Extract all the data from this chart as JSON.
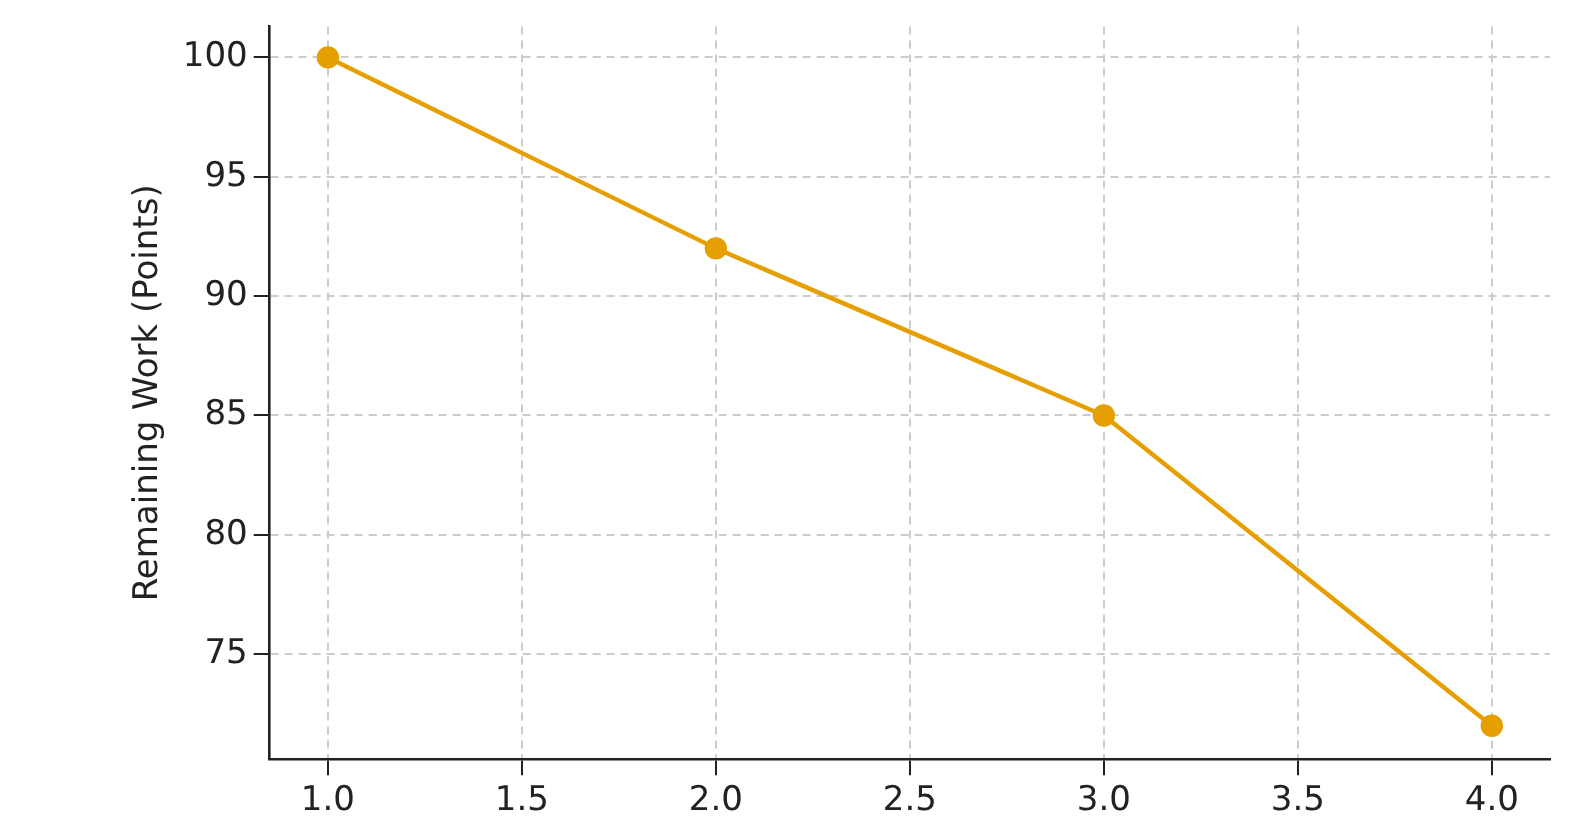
{
  "chart_data": {
    "type": "line",
    "ylabel": "Remaining Work (Points)",
    "x": [
      1,
      2,
      3,
      4
    ],
    "series": [
      {
        "color": "#e69f00",
        "values": [
          100,
          92,
          85,
          72
        ]
      }
    ],
    "xlim": [
      0.85,
      4.15
    ],
    "xticks": [
      {
        "value": 1,
        "label": "1.0"
      },
      {
        "value": 1.5,
        "label": "1.5"
      },
      {
        "value": 2,
        "label": "2.0"
      },
      {
        "value": 2.5,
        "label": "2.5"
      },
      {
        "value": 3,
        "label": "3.0"
      },
      {
        "value": 3.5,
        "label": "3.5"
      },
      {
        "value": 4,
        "label": "4.0"
      }
    ],
    "ylim": [
      70.6,
      101.3
    ],
    "yticks": [
      75,
      80,
      85,
      90,
      95,
      100
    ],
    "grid": true,
    "marker": "circle",
    "line_style": "solid",
    "legend": false
  }
}
